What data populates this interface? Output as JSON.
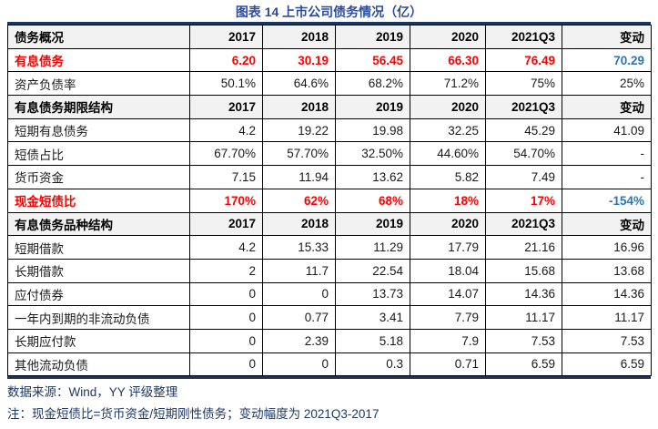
{
  "title": "图表 14 上市公司债务情况（亿）",
  "table": {
    "columns": [
      "债务概况",
      "2017",
      "2018",
      "2019",
      "2020",
      "2021Q3",
      "变动"
    ],
    "rows": [
      {
        "variant": "section",
        "cells": [
          "债务概况",
          "2017",
          "2018",
          "2019",
          "2020",
          "2021Q3",
          "变动"
        ]
      },
      {
        "variant": "emphasis",
        "cells": [
          "有息债务",
          "6.20",
          "30.19",
          "56.45",
          "66.30",
          "76.49",
          "70.29"
        ]
      },
      {
        "variant": "normal",
        "cells": [
          "资产负债率",
          "50.1%",
          "64.6%",
          "68.2%",
          "71.2%",
          "75%",
          "25%"
        ]
      },
      {
        "variant": "section",
        "cells": [
          "有息债务期限结构",
          "2017",
          "2018",
          "2019",
          "2020",
          "2021Q3",
          "变动"
        ]
      },
      {
        "variant": "normal",
        "cells": [
          "短期有息债务",
          "4.2",
          "19.22",
          "19.98",
          "32.25",
          "45.29",
          "41.09"
        ]
      },
      {
        "variant": "normal",
        "cells": [
          "短债占比",
          "67.70%",
          "57.70%",
          "32.50%",
          "44.60%",
          "54.70%",
          "-"
        ]
      },
      {
        "variant": "normal",
        "cells": [
          "货币资金",
          "7.15",
          "11.94",
          "13.62",
          "5.82",
          "7.49",
          "-"
        ]
      },
      {
        "variant": "emphasis",
        "cells": [
          "现金短债比",
          "170%",
          "62%",
          "68%",
          "18%",
          "17%",
          "-154%"
        ]
      },
      {
        "variant": "section",
        "cells": [
          "有息债务品种结构",
          "2017",
          "2018",
          "2019",
          "2020",
          "2021Q3",
          "变动"
        ]
      },
      {
        "variant": "normal",
        "cells": [
          "短期借款",
          "4.2",
          "15.33",
          "11.29",
          "17.79",
          "21.16",
          "16.96"
        ]
      },
      {
        "variant": "normal",
        "cells": [
          "长期借款",
          "2",
          "11.7",
          "22.54",
          "18.04",
          "15.68",
          "13.68"
        ]
      },
      {
        "variant": "normal",
        "cells": [
          "应付债券",
          "0",
          "0",
          "13.73",
          "14.07",
          "14.36",
          "14.36"
        ]
      },
      {
        "variant": "normal",
        "cells": [
          "一年内到期的非流动负债",
          "0",
          "0.77",
          "3.41",
          "7.79",
          "11.17",
          "11.17"
        ]
      },
      {
        "variant": "normal",
        "cells": [
          "长期应付款",
          "0",
          "2.39",
          "5.18",
          "7.9",
          "7.53",
          "7.53"
        ]
      },
      {
        "variant": "normal",
        "cells": [
          "其他流动负债",
          "0",
          "0",
          "0.3",
          "0.71",
          "6.59",
          "6.59"
        ]
      }
    ]
  },
  "footer": {
    "source": "数据来源：Wind，YY 评级整理",
    "note": "注：现金短债比=货币资金/短期刚性债务；变动幅度为 2021Q3-2017"
  },
  "colors": {
    "title_blue": "#2C4CA4",
    "emphasis_red": "#FF0000",
    "change_blue": "#2E75B6",
    "section_bg": "#F2F2F2",
    "rule_navy": "#17365D",
    "footer_navy": "#1F3864"
  }
}
